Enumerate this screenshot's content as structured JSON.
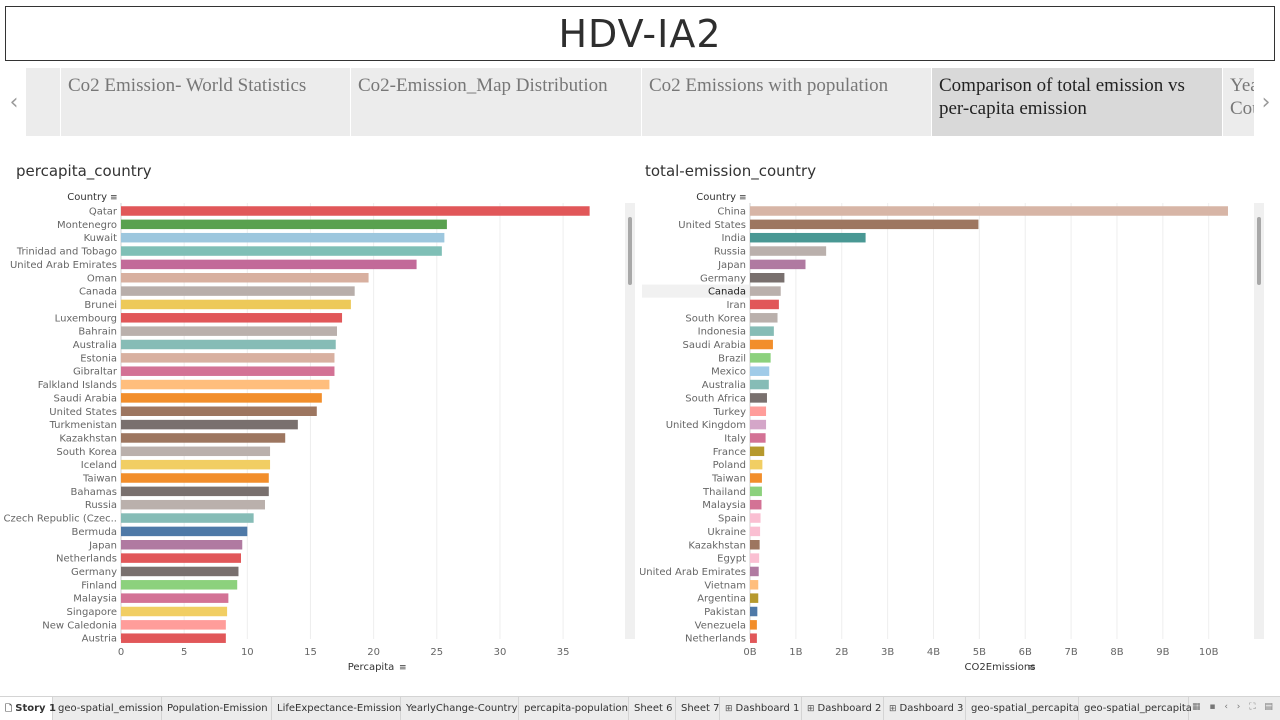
{
  "header": {
    "title": "HDV-IA2"
  },
  "story_points": [
    {
      "label": "Co2 Emission- World Statistics"
    },
    {
      "label": "Co2-Emission_Map Distribution"
    },
    {
      "label": "Co2 Emissions with population"
    },
    {
      "label": "Comparison of total emission vs per-capita emission"
    },
    {
      "label": "Yearly Change Country"
    }
  ],
  "nav": {
    "prev_icon": "chevron-left-icon",
    "next_icon": "chevron-right-icon",
    "prev_glyph": "‹",
    "next_glyph": "›"
  },
  "left_sheet": {
    "title": "percapita_country",
    "row_header": "Country",
    "axis_label": "Percapita"
  },
  "right_sheet": {
    "title": "total-emission_country",
    "row_header": "Country",
    "axis_label": "CO2Emissions"
  },
  "chart_data": [
    {
      "type": "bar",
      "orientation": "horizontal",
      "title": "percapita_country",
      "xlabel": "Percapita",
      "ylabel": "Country",
      "xlim": [
        0,
        38
      ],
      "xticks": [
        "0",
        "5",
        "10",
        "15",
        "20",
        "25",
        "30",
        "35"
      ],
      "grid": true,
      "categories": [
        "Qatar",
        "Montenegro",
        "Kuwait",
        "Trinidad and Tobago",
        "United Arab Emirates",
        "Oman",
        "Canada",
        "Brunei",
        "Luxembourg",
        "Bahrain",
        "Australia",
        "Estonia",
        "Gibraltar",
        "Falkland Islands",
        "Saudi Arabia",
        "United States",
        "Turkmenistan",
        "Kazakhstan",
        "South Korea",
        "Iceland",
        "Taiwan",
        "Bahamas",
        "Russia",
        "Czech Republic (Czec..",
        "Bermuda",
        "Japan",
        "Netherlands",
        "Germany",
        "Finland",
        "Malaysia",
        "Singapore",
        "New Caledonia",
        "Austria"
      ],
      "values": [
        37.1,
        25.8,
        25.6,
        25.4,
        23.4,
        19.6,
        18.5,
        18.2,
        17.5,
        17.1,
        17.0,
        16.9,
        16.9,
        16.5,
        15.9,
        15.5,
        14.0,
        13.0,
        11.8,
        11.8,
        11.7,
        11.7,
        11.4,
        10.5,
        10.0,
        9.6,
        9.5,
        9.3,
        9.2,
        8.5,
        8.4,
        8.3,
        8.3
      ],
      "colors": [
        "#e15759",
        "#59a14f",
        "#9dc7de",
        "#7fbfb6",
        "#c26a99",
        "#d8b0a0",
        "#b8aeaa",
        "#edc959",
        "#e15759",
        "#bab0ac",
        "#86bcb6",
        "#d8b0a0",
        "#d37295",
        "#ffbe7d",
        "#f28e2b",
        "#9d7660",
        "#79706e",
        "#9d7660",
        "#bab0ac",
        "#f1ce63",
        "#f28e2b",
        "#79706e",
        "#bab0ac",
        "#86bcb6",
        "#4e79a7",
        "#b07aa1",
        "#e15759",
        "#79706e",
        "#8cd17d",
        "#d37295",
        "#f1ce63",
        "#ff9d9a",
        "#e15759"
      ]
    },
    {
      "type": "bar",
      "orientation": "horizontal",
      "title": "total-emission_country",
      "xlabel": "CO2Emissions",
      "ylabel": "Country",
      "xlim": [
        0,
        10.9
      ],
      "xticks": [
        "0B",
        "1B",
        "2B",
        "3B",
        "4B",
        "5B",
        "6B",
        "7B",
        "8B",
        "9B",
        "10B"
      ],
      "units": "billions",
      "grid": true,
      "highlighted": "Canada",
      "categories": [
        "China",
        "United States",
        "India",
        "Russia",
        "Japan",
        "Germany",
        "Canada",
        "Iran",
        "South Korea",
        "Indonesia",
        "Saudi Arabia",
        "Brazil",
        "Mexico",
        "Australia",
        "South Africa",
        "Turkey",
        "United Kingdom",
        "Italy",
        "France",
        "Poland",
        "Taiwan",
        "Thailand",
        "Malaysia",
        "Spain",
        "Ukraine",
        "Kazakhstan",
        "Egypt",
        "United Arab Emirates",
        "Vietnam",
        "Argentina",
        "Pakistan",
        "Venezuela",
        "Netherlands"
      ],
      "values": [
        10.42,
        4.98,
        2.52,
        1.66,
        1.21,
        0.75,
        0.67,
        0.63,
        0.6,
        0.52,
        0.5,
        0.45,
        0.42,
        0.41,
        0.37,
        0.35,
        0.35,
        0.34,
        0.31,
        0.27,
        0.26,
        0.26,
        0.25,
        0.23,
        0.22,
        0.21,
        0.2,
        0.19,
        0.18,
        0.18,
        0.16,
        0.15,
        0.15
      ],
      "colors": [
        "#d7b5a6",
        "#9d7660",
        "#499894",
        "#bab0ac",
        "#b07aa1",
        "#79706e",
        "#bab0ac",
        "#e15759",
        "#bab0ac",
        "#86bcb6",
        "#f28e2b",
        "#8cd17d",
        "#a0cbe8",
        "#86bcb6",
        "#79706e",
        "#ff9d9a",
        "#d4a6c8",
        "#d37295",
        "#b6992d",
        "#f1ce63",
        "#f28e2b",
        "#8cd17d",
        "#d37295",
        "#fabfd2",
        "#fabfd2",
        "#9d7660",
        "#fabfd2",
        "#b07aa1",
        "#ffbe7d",
        "#b6992d",
        "#4e79a7",
        "#f28e2b",
        "#e15759"
      ]
    }
  ],
  "bottom_tabs": [
    {
      "label": "Story 1",
      "icon": "story-icon",
      "glyph": "🗋",
      "active": true
    },
    {
      "label": "geo-spatial_emission"
    },
    {
      "label": "Population-Emission"
    },
    {
      "label": "LifeExpectance-Emission"
    },
    {
      "label": "YearlyChange-Country"
    },
    {
      "label": "percapita-population"
    },
    {
      "label": "Sheet 6"
    },
    {
      "label": "Sheet 7"
    },
    {
      "label": "Dashboard 1",
      "icon": "dashboard-icon",
      "glyph": "⊞"
    },
    {
      "label": "Dashboard 2",
      "icon": "dashboard-icon",
      "glyph": "⊞"
    },
    {
      "label": "Dashboard 3",
      "icon": "dashboard-icon",
      "glyph": "⊞"
    },
    {
      "label": "geo-spatial_percapita"
    },
    {
      "label": "geo-spatial_percapita"
    }
  ],
  "tray": {
    "icons": [
      "grid-view-icon",
      "filmstrip-icon",
      "prev-page-icon",
      "next-page-icon",
      "fullscreen-icon",
      "tab-list-icon"
    ],
    "glyphs": "▦ ▪ ‹ › ⛶ ▤"
  }
}
